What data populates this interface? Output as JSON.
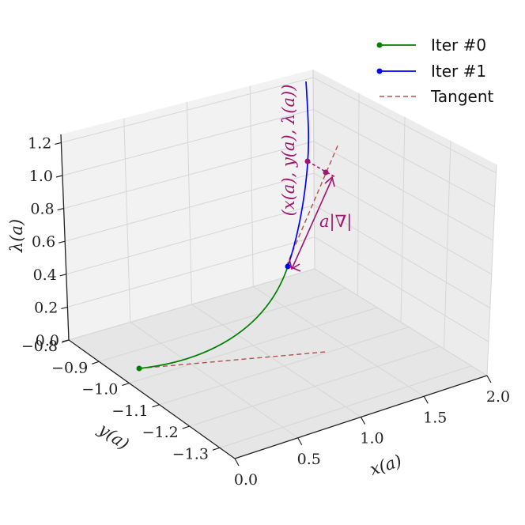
{
  "chart_data": {
    "type": "line",
    "projection": "3d",
    "xlabel": "x(a)",
    "ylabel": "y(a)",
    "zlabel": "λ(a)",
    "xlim": [
      0.0,
      2.0
    ],
    "ylim": [
      -1.35,
      -0.8
    ],
    "zlim": [
      0.0,
      1.25
    ],
    "xticks": [
      "0.0",
      "0.5",
      "1.0",
      "1.5",
      "2.0"
    ],
    "yticks": [
      "−0.8",
      "−0.9",
      "−1.0",
      "−1.1",
      "−1.2",
      "−1.3"
    ],
    "zticks": [
      "0.0",
      "0.2",
      "0.4",
      "0.6",
      "0.8",
      "1.0",
      "1.2"
    ],
    "grid": true,
    "legend_position": "top-right",
    "legend": [
      "Iter #0",
      "Iter #1",
      "Tangent"
    ],
    "annotations": {
      "curve_label": "(x(a), y(a), λ(a))",
      "step_label": "a|∇|"
    },
    "colors": {
      "iter0": "#008000",
      "iter1": "#0000ff",
      "tangent": "#b05050",
      "annotation": "#a0156e"
    }
  }
}
